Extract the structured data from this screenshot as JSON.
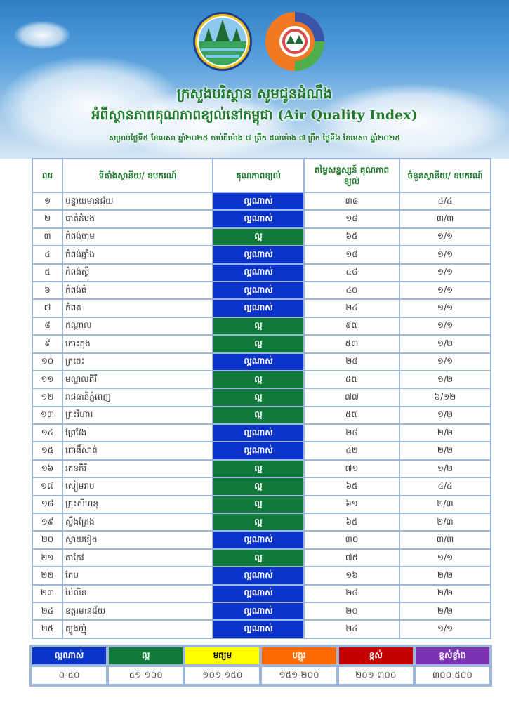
{
  "header": {
    "line1": "ក្រសួងបរិស្ថាន សូមជូនដំណឹង",
    "line2_kh": "អំពីស្ថានភាពគុណភាពខ្យល់នៅកម្ពុជា",
    "line2_en": "(Air Quality Index)",
    "line3": "សម្រាប់ថ្ងៃទី៥ ខែមេសា ឆ្នាំ២០២៥ ចាប់ពីម៉ោង ៧ ព្រឹក ដល់ម៉ោង ៧ ព្រឹក ថ្ងៃទី៦ ខែមេសា ឆ្នាំ២០២៥"
  },
  "colors": {
    "very_good": "#0a33c9",
    "good": "#0f7a3a",
    "moderate": "#ffff00",
    "fair": "#ff6a00",
    "high": "#c40000",
    "very_high": "#7a32b0"
  },
  "table": {
    "headers": [
      "លរ",
      "ទីតាំងស្ថានីយ/ ឧបករណ៍",
      "គុណភាពខ្យល់",
      "តម្លៃសន្ទស្សន៍ គុណភាពខ្យល់",
      "ចំនួនស្ថានីយ/ ឧបករណ៍"
    ],
    "rows": [
      {
        "no": "១",
        "name": "បន្ទាយមានជ័យ",
        "quality": "ល្អណាស់",
        "level": "very_good",
        "aqi": "៣៨",
        "stations": "៤/៤"
      },
      {
        "no": "២",
        "name": "បាត់ដំបង",
        "quality": "ល្អណាស់",
        "level": "very_good",
        "aqi": "១៨",
        "stations": "៣/៣"
      },
      {
        "no": "៣",
        "name": "កំពង់ចាម",
        "quality": "ល្អ",
        "level": "good",
        "aqi": "៦៥",
        "stations": "១/១"
      },
      {
        "no": "៤",
        "name": "កំពង់ឆ្នាំង",
        "quality": "ល្អណាស់",
        "level": "very_good",
        "aqi": "១៨",
        "stations": "១/១"
      },
      {
        "no": "៥",
        "name": "កំពង់ស្ពឺ",
        "quality": "ល្អណាស់",
        "level": "very_good",
        "aqi": "៤៨",
        "stations": "១/១"
      },
      {
        "no": "៦",
        "name": "កំពង់ធំ",
        "quality": "ល្អណាស់",
        "level": "very_good",
        "aqi": "៤០",
        "stations": "១/១"
      },
      {
        "no": "៧",
        "name": "កំពត",
        "quality": "ល្អណាស់",
        "level": "very_good",
        "aqi": "២៤",
        "stations": "១/១"
      },
      {
        "no": "៨",
        "name": "កណ្ដាល",
        "quality": "ល្អ",
        "level": "good",
        "aqi": "៩៧",
        "stations": "១/១"
      },
      {
        "no": "៩",
        "name": "កោះកុង",
        "quality": "ល្អ",
        "level": "good",
        "aqi": "៥៣",
        "stations": "១/២"
      },
      {
        "no": "១០",
        "name": "ក្រចេះ",
        "quality": "ល្អណាស់",
        "level": "very_good",
        "aqi": "២៨",
        "stations": "១/១"
      },
      {
        "no": "១១",
        "name": "មណ្ឌលគិរី",
        "quality": "ល្អ",
        "level": "good",
        "aqi": "៥៧",
        "stations": "១/២"
      },
      {
        "no": "១២",
        "name": "រាជធានីភ្នំពេញ",
        "quality": "ល្អ",
        "level": "good",
        "aqi": "៧៧",
        "stations": "៦/១២"
      },
      {
        "no": "១៣",
        "name": "ព្រះវិហារ",
        "quality": "ល្អ",
        "level": "good",
        "aqi": "៥៧",
        "stations": "១/២"
      },
      {
        "no": "១៤",
        "name": "ព្រៃវែង",
        "quality": "ល្អណាស់",
        "level": "very_good",
        "aqi": "២៨",
        "stations": "២/២"
      },
      {
        "no": "១៥",
        "name": "ពោធិ៍សាត់",
        "quality": "ល្អណាស់",
        "level": "very_good",
        "aqi": "៤២",
        "stations": "២/២"
      },
      {
        "no": "១៦",
        "name": "រតនគិរី",
        "quality": "ល្អ",
        "level": "good",
        "aqi": "៧១",
        "stations": "១/២"
      },
      {
        "no": "១៧",
        "name": "សៀមរាប",
        "quality": "ល្អ",
        "level": "good",
        "aqi": "៦៥",
        "stations": "៤/៤"
      },
      {
        "no": "១៨",
        "name": "ព្រះសីហនុ",
        "quality": "ល្អ",
        "level": "good",
        "aqi": "៦១",
        "stations": "២/៣"
      },
      {
        "no": "១៩",
        "name": "ស្ទឹងត្រែង",
        "quality": "ល្អ",
        "level": "good",
        "aqi": "៦៥",
        "stations": "២/៣"
      },
      {
        "no": "២០",
        "name": "ស្វាយរៀង",
        "quality": "ល្អណាស់",
        "level": "very_good",
        "aqi": "៣០",
        "stations": "៣/៣"
      },
      {
        "no": "២១",
        "name": "តាកែវ",
        "quality": "ល្អ",
        "level": "good",
        "aqi": "៧៥",
        "stations": "១/១"
      },
      {
        "no": "២២",
        "name": "កែប",
        "quality": "ល្អណាស់",
        "level": "very_good",
        "aqi": "១៦",
        "stations": "២/២"
      },
      {
        "no": "២៣",
        "name": "ប៉ៃលិន",
        "quality": "ល្អណាស់",
        "level": "very_good",
        "aqi": "២៨",
        "stations": "២/២"
      },
      {
        "no": "២៤",
        "name": "ឧត្តរមានជ័យ",
        "quality": "ល្អណាស់",
        "level": "very_good",
        "aqi": "២០",
        "stations": "២/២"
      },
      {
        "no": "២៥",
        "name": "ត្បូងឃ្មុំ",
        "quality": "ល្អណាស់",
        "level": "very_good",
        "aqi": "២៤",
        "stations": "១/១"
      }
    ]
  },
  "legend": [
    {
      "label": "ល្អណាស់",
      "range": "០-៥០",
      "level": "very_good",
      "text": "#fff"
    },
    {
      "label": "ល្អ",
      "range": "៥១-១០០",
      "level": "good",
      "text": "#fff"
    },
    {
      "label": "មធ្យម",
      "range": "១០១-១៥០",
      "level": "moderate",
      "text": "#000"
    },
    {
      "label": "បង្គួរ",
      "range": "១៥១-២០០",
      "level": "fair",
      "text": "#fff"
    },
    {
      "label": "ខ្ពស់",
      "range": "២០១-៣០០",
      "level": "high",
      "text": "#fff"
    },
    {
      "label": "ខ្ពស់ខ្លាំង",
      "range": "៣០០-៥០០",
      "level": "very_high",
      "text": "#fff"
    }
  ]
}
